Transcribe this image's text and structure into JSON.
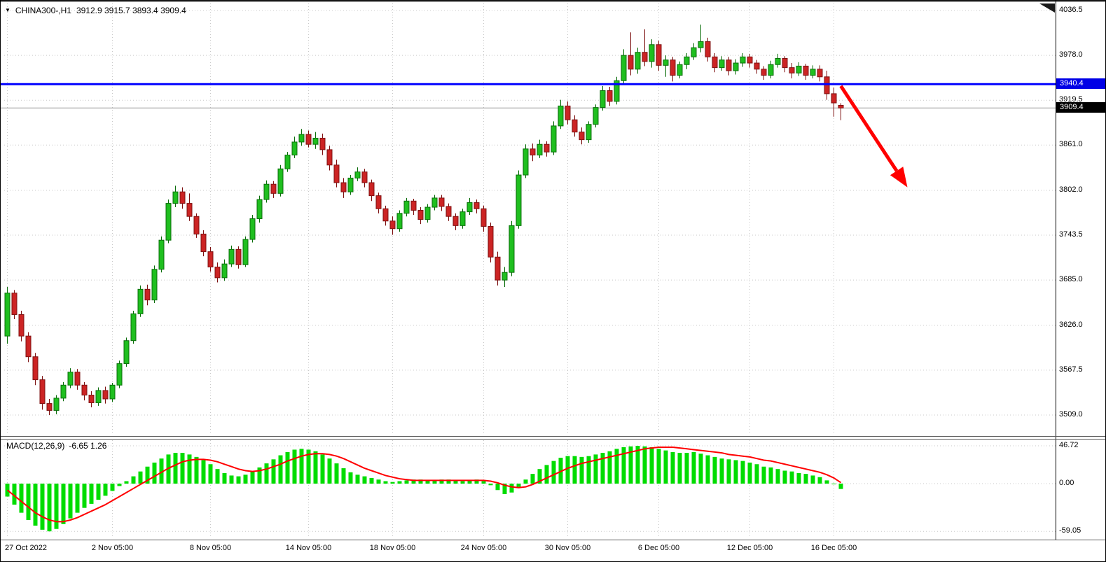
{
  "colors": {
    "background": "#FFFFFF",
    "grid": "#C8C8C8",
    "candle_up_fill": "#1FBF1F",
    "candle_up_stroke": "#0B6E0B",
    "candle_down_fill": "#CC2424",
    "candle_down_stroke": "#7E1212",
    "hline": "#0000FF",
    "current_price_line": "#999999",
    "arrow": "#FF0000",
    "macd_hist": "#00DC00",
    "macd_signal": "#FF0000",
    "separator": "#5A5A5A"
  },
  "chart_data": {
    "type": "candlestick",
    "title": "CHINA300-,H1",
    "ohlc_display": "3912.9 3915.7 3893.4 3909.4",
    "current_bar": {
      "open": 3912.9,
      "high": 3915.7,
      "low": 3893.4,
      "close": 3909.4
    },
    "price_axis": {
      "side": "right",
      "top_value": 4036.5,
      "bottom_value": 3509.0,
      "tick_labels": [
        "4036.5",
        "3978.0",
        "3919.5",
        "3861.0",
        "3802.0",
        "3743.5",
        "3685.0",
        "3626.0",
        "3567.5",
        "3509.0"
      ]
    },
    "time_axis": {
      "tick_labels": [
        "27 Oct 2022",
        "2 Nov 05:00",
        "8 Nov 05:00",
        "14 Nov 05:00",
        "18 Nov 05:00",
        "24 Nov 05:00",
        "30 Nov 05:00",
        "6 Dec 05:00",
        "12 Dec 05:00",
        "16 Dec 05:00"
      ],
      "tick_bar_indices": [
        0,
        15,
        29,
        43,
        55,
        68,
        80,
        93,
        106,
        118
      ]
    },
    "horizontal_line": {
      "price": 3940.4,
      "label": "3940.4",
      "color": "#0000FF"
    },
    "current_price": {
      "value": 3909.4,
      "label": "3909.4"
    },
    "trend_arrow": {
      "color": "#FF0000",
      "from": {
        "bar": 119,
        "price": 3938
      },
      "to": {
        "bar": 128.5,
        "price": 3806
      }
    },
    "candles_ohlc": [
      [
        3612,
        3676,
        3602,
        3668
      ],
      [
        3668,
        3672,
        3634,
        3640
      ],
      [
        3640,
        3645,
        3605,
        3612
      ],
      [
        3612,
        3617,
        3578,
        3585
      ],
      [
        3585,
        3590,
        3548,
        3555
      ],
      [
        3555,
        3560,
        3516,
        3524
      ],
      [
        3524,
        3530,
        3509,
        3515
      ],
      [
        3515,
        3535,
        3510,
        3531
      ],
      [
        3531,
        3552,
        3527,
        3548
      ],
      [
        3548,
        3570,
        3544,
        3565
      ],
      [
        3565,
        3569,
        3542,
        3548
      ],
      [
        3548,
        3552,
        3528,
        3535
      ],
      [
        3535,
        3540,
        3519,
        3525
      ],
      [
        3525,
        3545,
        3521,
        3541
      ],
      [
        3541,
        3546,
        3524,
        3530
      ],
      [
        3530,
        3551,
        3526,
        3548
      ],
      [
        3548,
        3580,
        3544,
        3576
      ],
      [
        3576,
        3610,
        3572,
        3606
      ],
      [
        3606,
        3645,
        3602,
        3641
      ],
      [
        3641,
        3678,
        3637,
        3673
      ],
      [
        3673,
        3679,
        3652,
        3659
      ],
      [
        3659,
        3704,
        3655,
        3699
      ],
      [
        3699,
        3742,
        3695,
        3737
      ],
      [
        3737,
        3790,
        3733,
        3785
      ],
      [
        3785,
        3808,
        3780,
        3800
      ],
      [
        3800,
        3806,
        3778,
        3785
      ],
      [
        3785,
        3798,
        3762,
        3768
      ],
      [
        3768,
        3772,
        3740,
        3745
      ],
      [
        3745,
        3750,
        3716,
        3722
      ],
      [
        3722,
        3728,
        3696,
        3702
      ],
      [
        3702,
        3708,
        3682,
        3688
      ],
      [
        3688,
        3712,
        3684,
        3706
      ],
      [
        3706,
        3730,
        3702,
        3725
      ],
      [
        3725,
        3729,
        3700,
        3705
      ],
      [
        3705,
        3742,
        3702,
        3738
      ],
      [
        3738,
        3770,
        3734,
        3765
      ],
      [
        3765,
        3795,
        3760,
        3790
      ],
      [
        3790,
        3815,
        3786,
        3810
      ],
      [
        3810,
        3814,
        3792,
        3798
      ],
      [
        3798,
        3835,
        3794,
        3830
      ],
      [
        3830,
        3852,
        3826,
        3848
      ],
      [
        3848,
        3872,
        3844,
        3865
      ],
      [
        3865,
        3882,
        3860,
        3875
      ],
      [
        3875,
        3880,
        3858,
        3862
      ],
      [
        3862,
        3878,
        3856,
        3870
      ],
      [
        3870,
        3876,
        3848,
        3855
      ],
      [
        3855,
        3860,
        3828,
        3835
      ],
      [
        3835,
        3842,
        3806,
        3812
      ],
      [
        3812,
        3818,
        3792,
        3800
      ],
      [
        3800,
        3822,
        3796,
        3818
      ],
      [
        3818,
        3832,
        3814,
        3826
      ],
      [
        3826,
        3830,
        3806,
        3812
      ],
      [
        3812,
        3816,
        3788,
        3795
      ],
      [
        3795,
        3799,
        3772,
        3778
      ],
      [
        3778,
        3782,
        3756,
        3762
      ],
      [
        3762,
        3768,
        3744,
        3752
      ],
      [
        3752,
        3776,
        3748,
        3772
      ],
      [
        3772,
        3792,
        3768,
        3788
      ],
      [
        3788,
        3791,
        3770,
        3776
      ],
      [
        3776,
        3780,
        3758,
        3764
      ],
      [
        3764,
        3784,
        3760,
        3780
      ],
      [
        3780,
        3796,
        3776,
        3792
      ],
      [
        3792,
        3796,
        3775,
        3781
      ],
      [
        3781,
        3785,
        3762,
        3768
      ],
      [
        3768,
        3772,
        3750,
        3756
      ],
      [
        3756,
        3778,
        3752,
        3774
      ],
      [
        3774,
        3792,
        3770,
        3786
      ],
      [
        3786,
        3790,
        3772,
        3778
      ],
      [
        3778,
        3782,
        3748,
        3755
      ],
      [
        3755,
        3760,
        3708,
        3715
      ],
      [
        3715,
        3722,
        3678,
        3685
      ],
      [
        3685,
        3702,
        3676,
        3695
      ],
      [
        3695,
        3762,
        3690,
        3756
      ],
      [
        3756,
        3828,
        3752,
        3822
      ],
      [
        3822,
        3862,
        3818,
        3856
      ],
      [
        3856,
        3863,
        3840,
        3848
      ],
      [
        3848,
        3868,
        3844,
        3862
      ],
      [
        3862,
        3866,
        3846,
        3852
      ],
      [
        3852,
        3892,
        3848,
        3886
      ],
      [
        3886,
        3920,
        3882,
        3912
      ],
      [
        3912,
        3918,
        3888,
        3894
      ],
      [
        3894,
        3900,
        3872,
        3878
      ],
      [
        3878,
        3884,
        3862,
        3868
      ],
      [
        3868,
        3892,
        3864,
        3888
      ],
      [
        3888,
        3914,
        3884,
        3910
      ],
      [
        3910,
        3938,
        3906,
        3932
      ],
      [
        3932,
        3937,
        3912,
        3918
      ],
      [
        3918,
        3950,
        3914,
        3945
      ],
      [
        3945,
        3986,
        3940,
        3978
      ],
      [
        3978,
        4008,
        3952,
        3960
      ],
      [
        3960,
        3988,
        3954,
        3982
      ],
      [
        3982,
        4012,
        3964,
        3970
      ],
      [
        3970,
        3999,
        3962,
        3992
      ],
      [
        3992,
        3997,
        3958,
        3965
      ],
      [
        3965,
        3978,
        3950,
        3972
      ],
      [
        3972,
        3976,
        3944,
        3952
      ],
      [
        3952,
        3970,
        3948,
        3966
      ],
      [
        3966,
        3981,
        3960,
        3976
      ],
      [
        3976,
        3994,
        3972,
        3988
      ],
      [
        3988,
        4018,
        3982,
        3996
      ],
      [
        3996,
        4001,
        3970,
        3976
      ],
      [
        3976,
        3981,
        3956,
        3962
      ],
      [
        3962,
        3977,
        3958,
        3972
      ],
      [
        3972,
        3976,
        3952,
        3958
      ],
      [
        3958,
        3973,
        3953,
        3968
      ],
      [
        3968,
        3981,
        3963,
        3976
      ],
      [
        3976,
        3980,
        3962,
        3968
      ],
      [
        3968,
        3972,
        3954,
        3960
      ],
      [
        3960,
        3964,
        3946,
        3952
      ],
      [
        3952,
        3971,
        3948,
        3966
      ],
      [
        3966,
        3980,
        3962,
        3974
      ],
      [
        3974,
        3977,
        3956,
        3962
      ],
      [
        3962,
        3968,
        3948,
        3955
      ],
      [
        3955,
        3969,
        3951,
        3964
      ],
      [
        3964,
        3967,
        3946,
        3952
      ],
      [
        3952,
        3965,
        3948,
        3960
      ],
      [
        3960,
        3965,
        3944,
        3950
      ],
      [
        3950,
        3958,
        3920,
        3928
      ],
      [
        3928,
        3936,
        3898,
        3916
      ],
      [
        3912.9,
        3915.7,
        3893.4,
        3909.4
      ]
    ],
    "macd": {
      "label": "MACD(12,26,9)",
      "value_text": "-6.65 1.26",
      "axis_tick_labels": [
        "46.72",
        "0.00",
        "-59.05"
      ],
      "axis_max": 46.72,
      "axis_min": -59.05,
      "histogram": [
        -16,
        -26,
        -36,
        -45,
        -52,
        -57,
        -59,
        -56,
        -50,
        -43,
        -36,
        -30,
        -25,
        -20,
        -15,
        -9,
        -3,
        3,
        9,
        15,
        21,
        26,
        31,
        36,
        38,
        38,
        36,
        33,
        29,
        24,
        18,
        13,
        10,
        9,
        11,
        15,
        20,
        25,
        30,
        35,
        39,
        42,
        43,
        42,
        40,
        36,
        31,
        25,
        19,
        14,
        11,
        9,
        7,
        5,
        3,
        2,
        3,
        4,
        5,
        5,
        4,
        4,
        5,
        5,
        4,
        3,
        4,
        5,
        3,
        -2,
        -8,
        -13,
        -11,
        -4,
        5,
        12,
        18,
        23,
        28,
        32,
        34,
        34,
        33,
        34,
        36,
        38,
        40,
        43,
        45,
        46,
        46.7,
        46,
        45,
        43,
        41,
        39,
        38,
        38,
        39,
        37,
        35,
        33,
        31,
        30,
        29,
        28,
        26,
        24,
        21,
        20,
        18,
        16,
        15,
        13,
        12,
        10,
        8,
        4,
        0,
        -6.65
      ],
      "signal": [
        -8,
        -15,
        -22,
        -29,
        -36,
        -41,
        -45,
        -47,
        -47,
        -45,
        -42,
        -38,
        -34,
        -30,
        -26,
        -21,
        -16,
        -11,
        -6,
        -1,
        4,
        9,
        14,
        19,
        23,
        27,
        29,
        30,
        30,
        29,
        27,
        24,
        21,
        18,
        16,
        15,
        16,
        18,
        21,
        24,
        28,
        31,
        34,
        36,
        37,
        37,
        36,
        34,
        31,
        27,
        23,
        19,
        16,
        13,
        10,
        8,
        6,
        5,
        4,
        4,
        4,
        4,
        4,
        4,
        4,
        4,
        4,
        4,
        4,
        3,
        1,
        -2,
        -4,
        -5,
        -4,
        -1,
        3,
        7,
        11,
        15,
        19,
        22,
        25,
        27,
        29,
        31,
        33,
        35,
        37,
        39,
        41,
        43,
        44,
        45,
        45,
        45,
        44,
        43,
        42,
        41,
        40,
        39,
        38,
        36,
        35,
        34,
        33,
        31,
        29,
        28,
        26,
        24,
        22,
        20,
        18,
        16,
        14,
        11,
        7,
        1.26
      ]
    }
  }
}
